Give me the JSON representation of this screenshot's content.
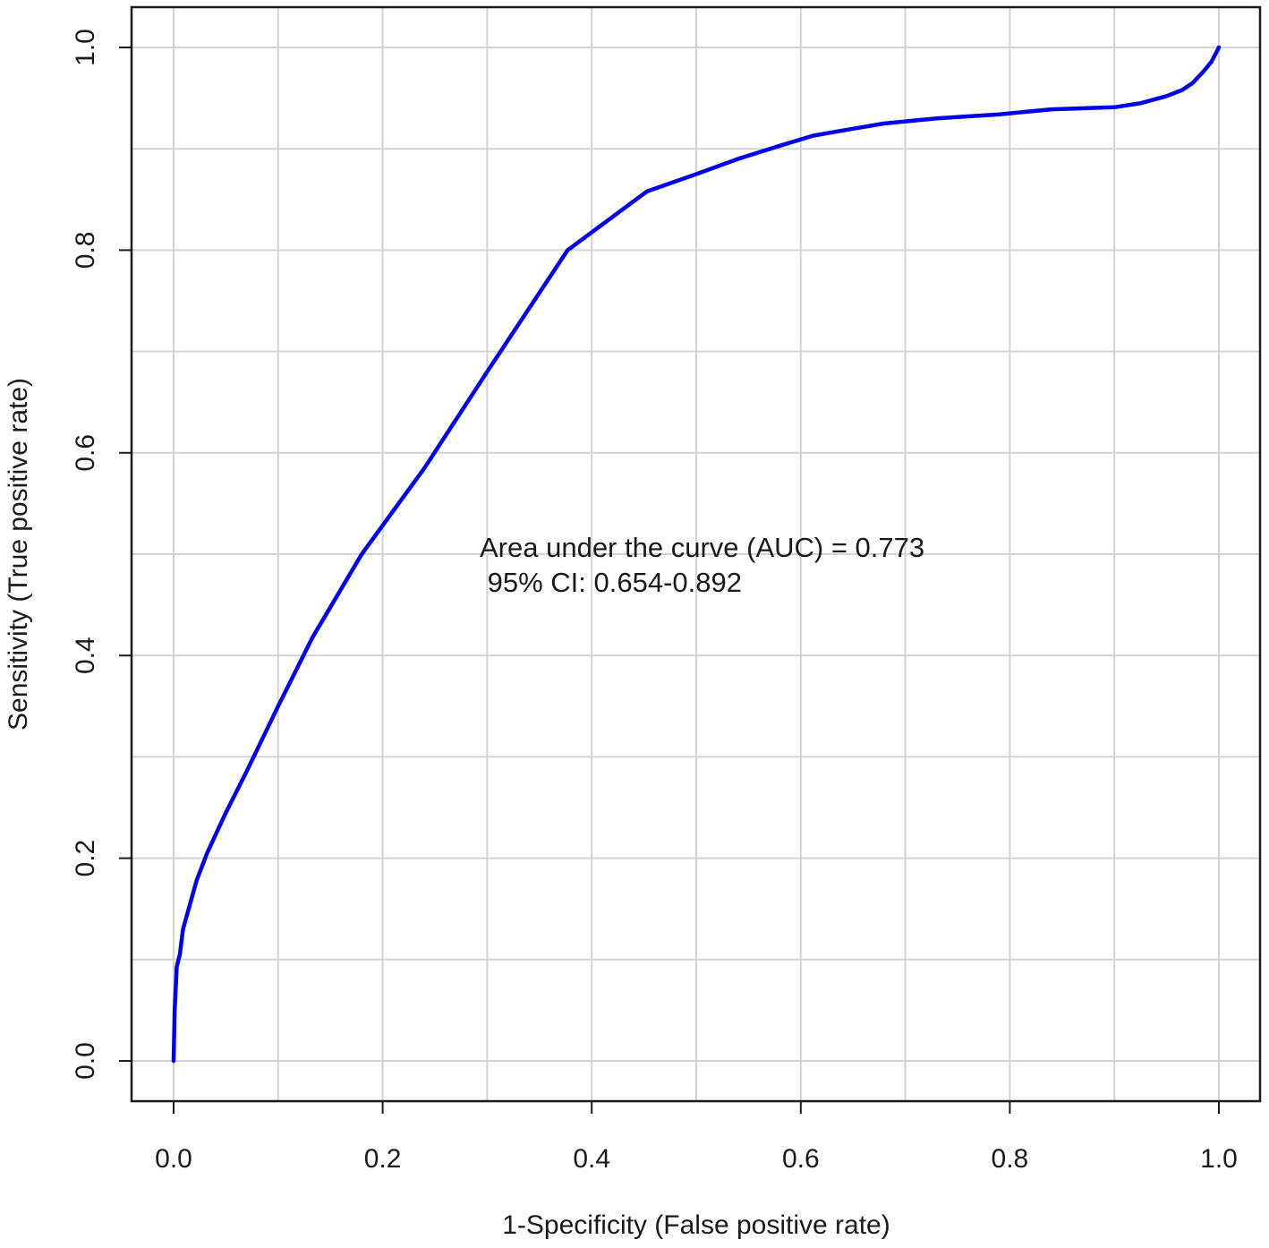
{
  "chart_data": {
    "type": "line",
    "title": "",
    "xlabel": "1-Specificity (False positive rate)",
    "ylabel": "Sensitivity (True positive rate)",
    "xlim": [
      0,
      1
    ],
    "ylim": [
      0,
      1
    ],
    "x_ticks": [
      0.0,
      0.2,
      0.4,
      0.6,
      0.8,
      1.0
    ],
    "x_tick_labels": [
      "0.0",
      "0.2",
      "0.4",
      "0.6",
      "0.8",
      "1.0"
    ],
    "y_ticks": [
      0.0,
      0.2,
      0.4,
      0.6,
      0.8,
      1.0
    ],
    "y_tick_labels": [
      "0.0",
      "0.2",
      "0.4",
      "0.6",
      "0.8",
      "1.0"
    ],
    "grid": true,
    "grid_step": 0.1,
    "line_color": "#0000ee",
    "series": [
      {
        "x": [
          0.0,
          0.001,
          0.003,
          0.006,
          0.009,
          0.015,
          0.022,
          0.032,
          0.05,
          0.07,
          0.1,
          0.133,
          0.18,
          0.24,
          0.3,
          0.377,
          0.453,
          0.5,
          0.54,
          0.58,
          0.612,
          0.64,
          0.68,
          0.73,
          0.79,
          0.84,
          0.9,
          0.925,
          0.95,
          0.965,
          0.975,
          0.985,
          0.993,
          1.0
        ],
        "y": [
          0.0,
          0.05,
          0.093,
          0.105,
          0.13,
          0.152,
          0.178,
          0.205,
          0.245,
          0.286,
          0.35,
          0.418,
          0.5,
          0.585,
          0.68,
          0.8,
          0.858,
          0.875,
          0.89,
          0.903,
          0.913,
          0.918,
          0.925,
          0.93,
          0.934,
          0.939,
          0.941,
          0.945,
          0.952,
          0.958,
          0.965,
          0.976,
          0.986,
          1.0
        ]
      }
    ],
    "annotation_lines": [
      "Area under the curve (AUC) = 0.773",
      " 95% CI: 0.654-0.892"
    ]
  }
}
